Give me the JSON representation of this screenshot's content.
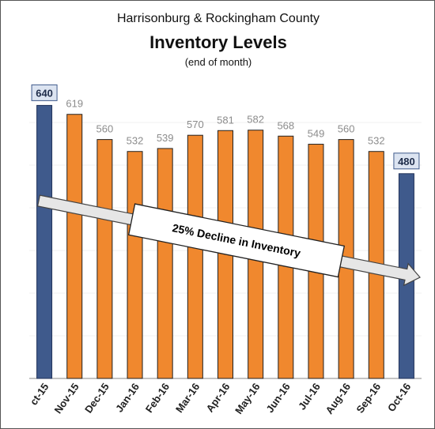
{
  "chart_data": {
    "type": "bar",
    "title": "Harrisonburg & Rockingham County",
    "subtitle": "Inventory Levels",
    "note": "(end of month)",
    "categories": [
      "ct-15",
      "Nov-15",
      "Dec-15",
      "Jan-16",
      "Feb-16",
      "Mar-16",
      "Apr-16",
      "May-16",
      "Jun-16",
      "Jul-16",
      "Aug-16",
      "Sep-16",
      "Oct-16"
    ],
    "values": [
      640,
      619,
      560,
      532,
      539,
      570,
      581,
      582,
      568,
      549,
      560,
      532,
      480
    ],
    "highlighted": [
      true,
      false,
      false,
      false,
      false,
      false,
      false,
      false,
      false,
      false,
      false,
      false,
      true
    ],
    "ylim": [
      0,
      700
    ],
    "grid": true,
    "colors": {
      "bar": "#F0882E",
      "highlight": "#3F5A8C",
      "label": "#8C8C8C",
      "highlight_label": "#1F2D4A",
      "label_box": "#DCE4F1",
      "arrow": "#E6E6E6"
    },
    "annotation": "25% Decline in Inventory"
  }
}
